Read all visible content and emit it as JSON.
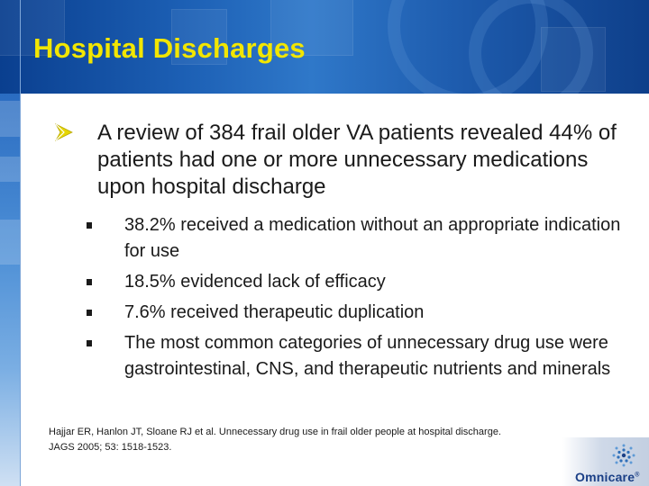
{
  "slide": {
    "title": "Hospital Discharges",
    "main_bullet": "A review of 384 frail older VA patients revealed 44% of patients had one or more unnecessary medications upon hospital discharge",
    "sub_bullets": [
      "38.2% received a medication without an appropriate indication for use",
      "18.5% evidenced lack of efficacy",
      "7.6% received therapeutic duplication",
      "The most common categories of unnecessary drug use were gastrointestinal, CNS, and therapeutic nutrients and minerals"
    ],
    "citation_line1": "Hajjar ER, Hanlon JT, Sloane RJ et al.  Unnecessary drug use in frail older people at hospital discharge.",
    "citation_line2": "JAGS 2005; 53: 1518-1523."
  },
  "logo": {
    "name": "Omnicare",
    "registered_mark": "®"
  },
  "colors": {
    "title": "#f2e600",
    "header_blue": "#1c5fb4",
    "bullet_arrow": "#e6d600",
    "logo_blue": "#1a3f86"
  },
  "icons": {
    "main_bullet": "arrow-bullet-icon",
    "sub_bullet": "square-bullet-icon",
    "logo": "omnicare-logo-icon"
  }
}
